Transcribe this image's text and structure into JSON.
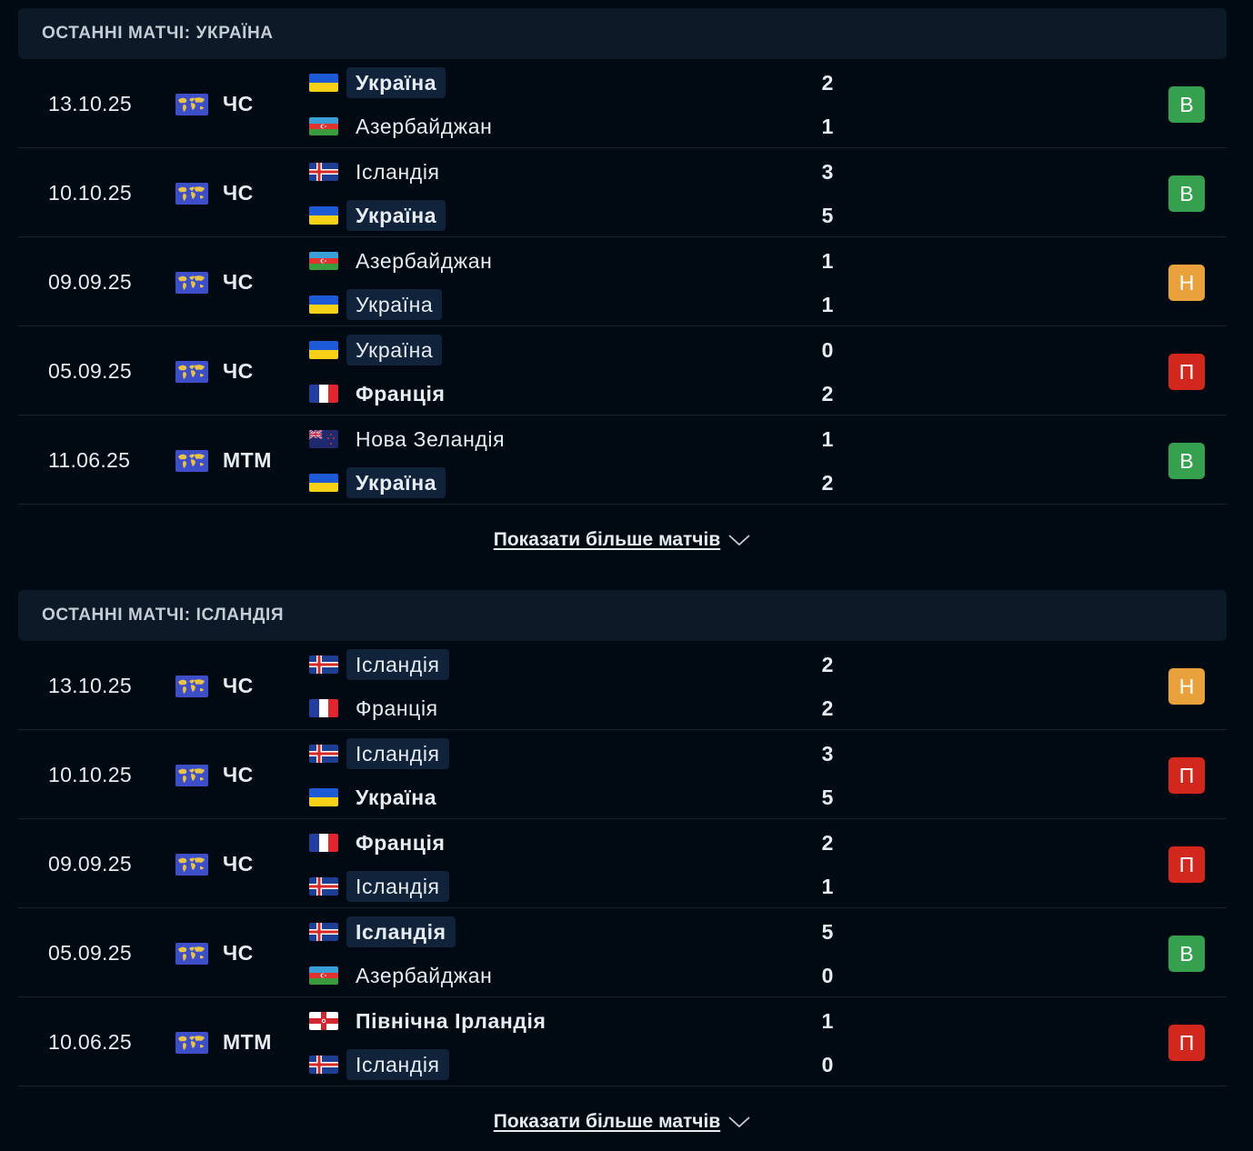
{
  "sections": [
    {
      "title": "ОСТАННІ МАТЧІ: УКРАЇНА",
      "show_more": "Показати більше матчів",
      "matches": [
        {
          "date": "13.10.25",
          "competition": "ЧС",
          "home": {
            "name": "Україна",
            "flag": "ukraine",
            "score": "2",
            "highlight": true,
            "bold": true
          },
          "away": {
            "name": "Азербайджан",
            "flag": "azerbaijan",
            "score": "1",
            "highlight": false,
            "bold": false
          },
          "result": "В",
          "result_type": "win"
        },
        {
          "date": "10.10.25",
          "competition": "ЧС",
          "home": {
            "name": "Ісландія",
            "flag": "iceland",
            "score": "3",
            "highlight": false,
            "bold": false
          },
          "away": {
            "name": "Україна",
            "flag": "ukraine",
            "score": "5",
            "highlight": true,
            "bold": true
          },
          "result": "В",
          "result_type": "win"
        },
        {
          "date": "09.09.25",
          "competition": "ЧС",
          "home": {
            "name": "Азербайджан",
            "flag": "azerbaijan",
            "score": "1",
            "highlight": false,
            "bold": false
          },
          "away": {
            "name": "Україна",
            "flag": "ukraine",
            "score": "1",
            "highlight": true,
            "bold": false
          },
          "result": "Н",
          "result_type": "draw"
        },
        {
          "date": "05.09.25",
          "competition": "ЧС",
          "home": {
            "name": "Україна",
            "flag": "ukraine",
            "score": "0",
            "highlight": true,
            "bold": false
          },
          "away": {
            "name": "Франція",
            "flag": "france",
            "score": "2",
            "highlight": false,
            "bold": true
          },
          "result": "П",
          "result_type": "loss"
        },
        {
          "date": "11.06.25",
          "competition": "МТМ",
          "home": {
            "name": "Нова Зеландія",
            "flag": "new-zealand",
            "score": "1",
            "highlight": false,
            "bold": false
          },
          "away": {
            "name": "Україна",
            "flag": "ukraine",
            "score": "2",
            "highlight": true,
            "bold": true
          },
          "result": "В",
          "result_type": "win"
        }
      ]
    },
    {
      "title": "ОСТАННІ МАТЧІ: ІСЛАНДІЯ",
      "show_more": "Показати більше матчів",
      "matches": [
        {
          "date": "13.10.25",
          "competition": "ЧС",
          "home": {
            "name": "Ісландія",
            "flag": "iceland",
            "score": "2",
            "highlight": true,
            "bold": false
          },
          "away": {
            "name": "Франція",
            "flag": "france",
            "score": "2",
            "highlight": false,
            "bold": false
          },
          "result": "Н",
          "result_type": "draw"
        },
        {
          "date": "10.10.25",
          "competition": "ЧС",
          "home": {
            "name": "Ісландія",
            "flag": "iceland",
            "score": "3",
            "highlight": true,
            "bold": false
          },
          "away": {
            "name": "Україна",
            "flag": "ukraine",
            "score": "5",
            "highlight": false,
            "bold": true
          },
          "result": "П",
          "result_type": "loss"
        },
        {
          "date": "09.09.25",
          "competition": "ЧС",
          "home": {
            "name": "Франція",
            "flag": "france",
            "score": "2",
            "highlight": false,
            "bold": true
          },
          "away": {
            "name": "Ісландія",
            "flag": "iceland",
            "score": "1",
            "highlight": true,
            "bold": false
          },
          "result": "П",
          "result_type": "loss"
        },
        {
          "date": "05.09.25",
          "competition": "ЧС",
          "home": {
            "name": "Ісландія",
            "flag": "iceland",
            "score": "5",
            "highlight": true,
            "bold": true
          },
          "away": {
            "name": "Азербайджан",
            "flag": "azerbaijan",
            "score": "0",
            "highlight": false,
            "bold": false
          },
          "result": "В",
          "result_type": "win"
        },
        {
          "date": "10.06.25",
          "competition": "МТМ",
          "home": {
            "name": "Північна Ірландія",
            "flag": "northern-ireland",
            "score": "1",
            "highlight": false,
            "bold": true
          },
          "away": {
            "name": "Ісландія",
            "flag": "iceland",
            "score": "0",
            "highlight": true,
            "bold": false
          },
          "result": "П",
          "result_type": "loss"
        }
      ]
    }
  ],
  "competition_icon": "world-map-icon",
  "show_more_icon": "chevron-down-icon",
  "colors": {
    "background": "#010a13",
    "header_bg": "#0b1a26",
    "highlight_bg": "#11233a",
    "win": "#35a04e",
    "draw": "#e9a23b",
    "loss": "#d2271c"
  }
}
